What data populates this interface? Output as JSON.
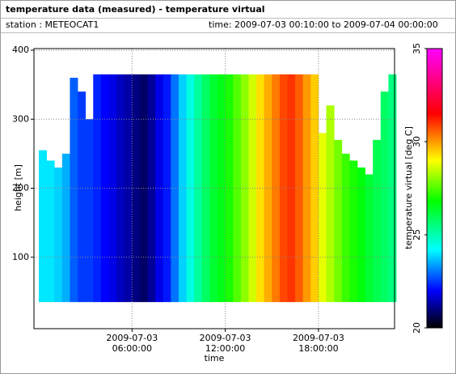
{
  "chart_data": {
    "type": "heatmap",
    "title": "temperature data (measured) - temperature virtual",
    "station": "station : METEOCAT1",
    "time_range": "time: 2009-07-03 00:10:00 to 2009-07-04 00:00:00",
    "xlabel": "time",
    "ylabel": "height [m]",
    "colorbar_label": "temperature virtual [deg C]",
    "x": [
      "2009-07-03 00:15",
      "2009-07-03 00:45",
      "2009-07-03 01:15",
      "2009-07-03 01:45",
      "2009-07-03 02:15",
      "2009-07-03 02:45",
      "2009-07-03 03:15",
      "2009-07-03 03:45",
      "2009-07-03 04:15",
      "2009-07-03 04:45",
      "2009-07-03 05:15",
      "2009-07-03 05:45",
      "2009-07-03 06:15",
      "2009-07-03 06:45",
      "2009-07-03 07:15",
      "2009-07-03 07:45",
      "2009-07-03 08:15",
      "2009-07-03 08:45",
      "2009-07-03 09:15",
      "2009-07-03 09:45",
      "2009-07-03 10:15",
      "2009-07-03 10:45",
      "2009-07-03 11:15",
      "2009-07-03 11:45",
      "2009-07-03 12:15",
      "2009-07-03 12:45",
      "2009-07-03 13:15",
      "2009-07-03 13:45",
      "2009-07-03 14:15",
      "2009-07-03 14:45",
      "2009-07-03 15:15",
      "2009-07-03 15:45",
      "2009-07-03 16:15",
      "2009-07-03 16:45",
      "2009-07-03 17:15",
      "2009-07-03 17:45",
      "2009-07-03 18:15",
      "2009-07-03 18:45",
      "2009-07-03 19:15",
      "2009-07-03 19:45",
      "2009-07-03 20:15",
      "2009-07-03 20:45",
      "2009-07-03 21:15",
      "2009-07-03 21:45",
      "2009-07-03 22:15",
      "2009-07-03 22:45"
    ],
    "values": [
      24.0,
      24.0,
      23.8,
      23.5,
      22.8,
      22.5,
      22.5,
      22.3,
      22.0,
      21.8,
      21.5,
      21.3,
      21.0,
      20.8,
      21.2,
      21.8,
      22.2,
      23.0,
      23.8,
      24.5,
      25.2,
      25.8,
      26.3,
      26.6,
      27.0,
      27.5,
      28.0,
      28.6,
      29.3,
      29.8,
      30.3,
      30.8,
      31.0,
      30.6,
      30.0,
      29.5,
      28.8,
      28.3,
      27.8,
      27.3,
      27.0,
      26.7,
      26.3,
      26.0,
      25.8,
      25.5
    ],
    "tops": [
      255,
      240,
      230,
      250,
      360,
      340,
      300,
      365,
      365,
      365,
      365,
      365,
      365,
      365,
      365,
      365,
      365,
      365,
      365,
      365,
      365,
      365,
      365,
      365,
      365,
      365,
      365,
      365,
      365,
      365,
      365,
      365,
      365,
      365,
      365,
      365,
      280,
      320,
      270,
      250,
      240,
      230,
      220,
      270,
      340,
      365
    ],
    "base": 35,
    "cell_minutes": 30,
    "xlim": [
      "2009-07-03 00:00",
      "2009-07-03 23:00"
    ],
    "xticks": [
      {
        "value": "2009-07-03 06:00",
        "label": "2009-07-03\n06:00:00"
      },
      {
        "value": "2009-07-03 12:00",
        "label": "2009-07-03\n12:00:00"
      },
      {
        "value": "2009-07-03 18:00",
        "label": "2009-07-03\n18:00:00"
      }
    ],
    "ylim": [
      0,
      400
    ],
    "yticks": [
      100,
      200,
      300,
      400
    ],
    "clim": [
      20,
      35
    ],
    "cticks": [
      20,
      25,
      30,
      35
    ],
    "colorscale": [
      [
        20,
        "#000000"
      ],
      [
        22,
        "#0000ff"
      ],
      [
        24.2,
        "#00ffff"
      ],
      [
        26.8,
        "#00ff00"
      ],
      [
        29,
        "#ffff00"
      ],
      [
        31.5,
        "#ff0000"
      ],
      [
        35,
        "#ff00ff"
      ]
    ],
    "grid": true
  }
}
